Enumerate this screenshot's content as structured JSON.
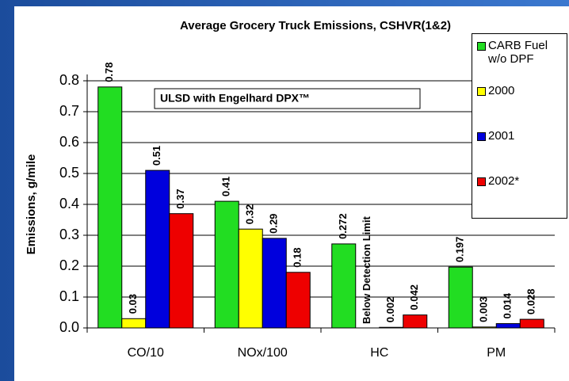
{
  "chart_data": {
    "type": "bar",
    "title": "Average Grocery Truck Emissions, CSHVR(1&2)",
    "ylabel": "Emissions, g/mile",
    "categories": [
      "CO/10",
      "NOx/100",
      "HC",
      "PM"
    ],
    "series": [
      {
        "name": "CARB Fuel w/o DPF",
        "color": "#22dd22",
        "values": [
          0.78,
          0.41,
          0.272,
          0.197
        ]
      },
      {
        "name": "2000",
        "color": "#ffff00",
        "values": [
          0.03,
          0.32,
          null,
          0.003
        ]
      },
      {
        "name": "2001",
        "color": "#0000dd",
        "values": [
          0.51,
          0.29,
          0.002,
          0.014
        ]
      },
      {
        "name": "2002*",
        "color": "#ee0000",
        "values": [
          0.37,
          0.18,
          0.042,
          0.028
        ]
      }
    ],
    "ylim": [
      0,
      0.8
    ],
    "yticks": [
      {
        "value": 0,
        "label": "0.0"
      },
      0.1,
      0.2,
      0.3,
      0.4,
      0.5,
      0.6,
      0.7,
      0.8
    ],
    "grid": true,
    "legend": "right",
    "annotations": [
      "ULSD with Engelhard DPX™",
      "Below Detection Limit"
    ]
  }
}
